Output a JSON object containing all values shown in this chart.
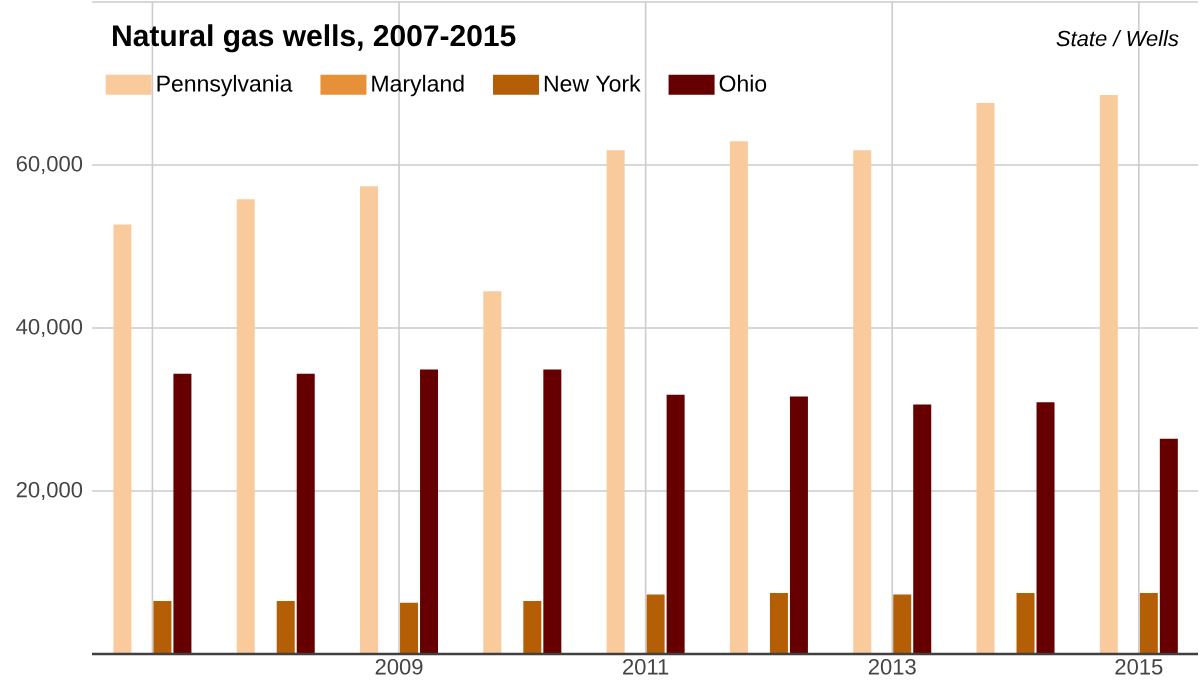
{
  "chart_data": {
    "type": "bar",
    "title": "Natural gas wells, 2007-2015",
    "legend_title": "State / Wells",
    "categories": [
      null,
      null,
      "2009",
      null,
      "2011",
      null,
      "2013",
      null,
      "2015"
    ],
    "series": [
      {
        "name": "Pennsylvania",
        "color": "#f9cb9c",
        "values": [
          52700,
          55800,
          57400,
          44500,
          61800,
          62900,
          61800,
          67600,
          68600
        ]
      },
      {
        "name": "Maryland",
        "color": "#e69138",
        "values": [
          0,
          0,
          0,
          0,
          0,
          0,
          0,
          0,
          0
        ]
      },
      {
        "name": "New York",
        "color": "#b45f06",
        "values": [
          6500,
          6500,
          6300,
          6500,
          7300,
          7500,
          7300,
          7500,
          7500
        ]
      },
      {
        "name": "Ohio",
        "color": "#660000",
        "values": [
          34400,
          34400,
          34900,
          34900,
          31800,
          31600,
          30600,
          30900,
          26400
        ]
      }
    ],
    "ylim": [
      0,
      80000
    ],
    "yticks": [
      {
        "value": 0,
        "label": null
      },
      {
        "value": 20000,
        "label": "20,000"
      },
      {
        "value": 40000,
        "label": "40,000"
      },
      {
        "value": 60000,
        "label": "60,000"
      },
      {
        "value": 80000,
        "label": null
      }
    ],
    "grid": true,
    "legend": "top left"
  }
}
